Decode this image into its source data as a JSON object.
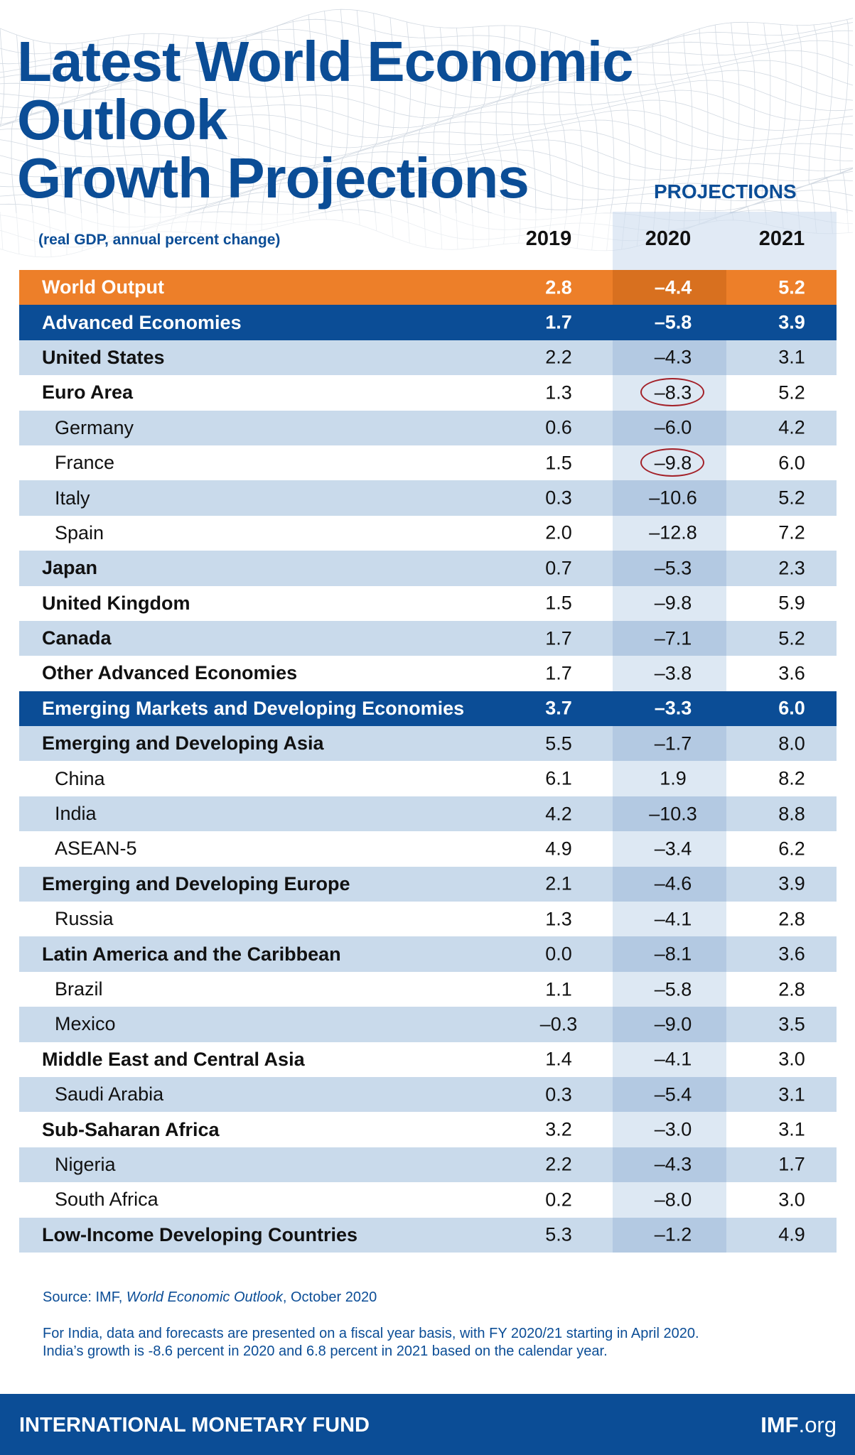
{
  "title_lines": [
    "Latest World Economic Outlook",
    "Growth Projections"
  ],
  "projections_label": "PROJECTIONS",
  "subtitle": "(real GDP, annual percent change)",
  "years": [
    "2019",
    "2020",
    "2021"
  ],
  "rows": [
    {
      "label": "World Output",
      "v2019": "2.8",
      "v2020": "–4.4",
      "v2021": "5.2",
      "style": "world"
    },
    {
      "label": "Advanced Economies",
      "v2019": "1.7",
      "v2020": "–5.8",
      "v2021": "3.9",
      "style": "blue"
    },
    {
      "label": "United States",
      "v2019": "2.2",
      "v2020": "–4.3",
      "v2021": "3.1",
      "style": "light",
      "level": "bold"
    },
    {
      "label": "Euro Area",
      "v2019": "1.3",
      "v2020": "–8.3",
      "v2021": "5.2",
      "style": "white",
      "level": "bold",
      "circled": true
    },
    {
      "label": "Germany",
      "v2019": "0.6",
      "v2020": "–6.0",
      "v2021": "4.2",
      "style": "light",
      "level": "sub"
    },
    {
      "label": "France",
      "v2019": "1.5",
      "v2020": "–9.8",
      "v2021": "6.0",
      "style": "white",
      "level": "sub",
      "circled": true
    },
    {
      "label": "Italy",
      "v2019": "0.3",
      "v2020": "–10.6",
      "v2021": "5.2",
      "style": "light",
      "level": "sub"
    },
    {
      "label": "Spain",
      "v2019": "2.0",
      "v2020": "–12.8",
      "v2021": "7.2",
      "style": "white",
      "level": "sub"
    },
    {
      "label": "Japan",
      "v2019": "0.7",
      "v2020": "–5.3",
      "v2021": "2.3",
      "style": "light",
      "level": "bold"
    },
    {
      "label": "United Kingdom",
      "v2019": "1.5",
      "v2020": "–9.8",
      "v2021": "5.9",
      "style": "white",
      "level": "bold"
    },
    {
      "label": "Canada",
      "v2019": "1.7",
      "v2020": "–7.1",
      "v2021": "5.2",
      "style": "light",
      "level": "bold"
    },
    {
      "label": "Other Advanced Economies",
      "v2019": "1.7",
      "v2020": "–3.8",
      "v2021": "3.6",
      "style": "white",
      "level": "bold"
    },
    {
      "label": "Emerging Markets and Developing Economies",
      "v2019": "3.7",
      "v2020": "–3.3",
      "v2021": "6.0",
      "style": "blue"
    },
    {
      "label": "Emerging and Developing Asia",
      "v2019": "5.5",
      "v2020": "–1.7",
      "v2021": "8.0",
      "style": "light",
      "level": "bold"
    },
    {
      "label": "China",
      "v2019": "6.1",
      "v2020": "1.9",
      "v2021": "8.2",
      "style": "white",
      "level": "sub"
    },
    {
      "label": "India",
      "v2019": "4.2",
      "v2020": "–10.3",
      "v2021": "8.8",
      "style": "light",
      "level": "sub"
    },
    {
      "label": "ASEAN-5",
      "v2019": "4.9",
      "v2020": "–3.4",
      "v2021": "6.2",
      "style": "white",
      "level": "sub"
    },
    {
      "label": "Emerging and Developing Europe",
      "v2019": "2.1",
      "v2020": "–4.6",
      "v2021": "3.9",
      "style": "light",
      "level": "bold"
    },
    {
      "label": "Russia",
      "v2019": "1.3",
      "v2020": "–4.1",
      "v2021": "2.8",
      "style": "white",
      "level": "sub"
    },
    {
      "label": "Latin America and the Caribbean",
      "v2019": "0.0",
      "v2020": "–8.1",
      "v2021": "3.6",
      "style": "light",
      "level": "bold"
    },
    {
      "label": "Brazil",
      "v2019": "1.1",
      "v2020": "–5.8",
      "v2021": "2.8",
      "style": "white",
      "level": "sub"
    },
    {
      "label": "Mexico",
      "v2019": "–0.3",
      "v2020": "–9.0",
      "v2021": "3.5",
      "style": "light",
      "level": "sub"
    },
    {
      "label": "Middle East and Central Asia",
      "v2019": "1.4",
      "v2020": "–4.1",
      "v2021": "3.0",
      "style": "white",
      "level": "bold"
    },
    {
      "label": "Saudi Arabia",
      "v2019": "0.3",
      "v2020": "–5.4",
      "v2021": "3.1",
      "style": "light",
      "level": "sub"
    },
    {
      "label": "Sub-Saharan Africa",
      "v2019": "3.2",
      "v2020": "–3.0",
      "v2021": "3.1",
      "style": "white",
      "level": "bold"
    },
    {
      "label": "Nigeria",
      "v2019": "2.2",
      "v2020": "–4.3",
      "v2021": "1.7",
      "style": "light",
      "level": "sub"
    },
    {
      "label": "South Africa",
      "v2019": "0.2",
      "v2020": "–8.0",
      "v2021": "3.0",
      "style": "white",
      "level": "sub"
    },
    {
      "label": "Low-Income Developing Countries",
      "v2019": "5.3",
      "v2020": "–1.2",
      "v2021": "4.9",
      "style": "light",
      "level": "bold"
    }
  ],
  "source": {
    "prefix": "Source: IMF, ",
    "publication": "World Economic Outlook",
    "suffix": ", October 2020"
  },
  "footnote_lines": [
    "For India, data and forecasts are presented on a fiscal year basis, with FY 2020/21 starting in April 2020.",
    "India’s growth is -8.6 percent in 2020 and 6.8 percent in 2021 based on the calendar year."
  ],
  "footer": {
    "org": "INTERNATIONAL MONETARY FUND",
    "site_bold": "IMF",
    "site_rest": ".org"
  },
  "colors": {
    "brand_blue": "#0b4d96",
    "world_orange": "#ed7f29",
    "row_light": "#c9daeb",
    "circle_red": "#a32028"
  },
  "chart_data": {
    "type": "table",
    "title": "Latest World Economic Outlook Growth Projections",
    "subtitle": "(real GDP, annual percent change)",
    "columns": [
      "2019",
      "2020",
      "2021"
    ],
    "projection_columns": [
      "2020",
      "2021"
    ],
    "rows": [
      [
        "World Output",
        2.8,
        -4.4,
        5.2
      ],
      [
        "Advanced Economies",
        1.7,
        -5.8,
        3.9
      ],
      [
        "United States",
        2.2,
        -4.3,
        3.1
      ],
      [
        "Euro Area",
        1.3,
        -8.3,
        5.2
      ],
      [
        "Germany",
        0.6,
        -6.0,
        4.2
      ],
      [
        "France",
        1.5,
        -9.8,
        6.0
      ],
      [
        "Italy",
        0.3,
        -10.6,
        5.2
      ],
      [
        "Spain",
        2.0,
        -12.8,
        7.2
      ],
      [
        "Japan",
        0.7,
        -5.3,
        2.3
      ],
      [
        "United Kingdom",
        1.5,
        -9.8,
        5.9
      ],
      [
        "Canada",
        1.7,
        -7.1,
        5.2
      ],
      [
        "Other Advanced Economies",
        1.7,
        -3.8,
        3.6
      ],
      [
        "Emerging Markets and Developing Economies",
        3.7,
        -3.3,
        6.0
      ],
      [
        "Emerging and Developing Asia",
        5.5,
        -1.7,
        8.0
      ],
      [
        "China",
        6.1,
        1.9,
        8.2
      ],
      [
        "India",
        4.2,
        -10.3,
        8.8
      ],
      [
        "ASEAN-5",
        4.9,
        -3.4,
        6.2
      ],
      [
        "Emerging and Developing Europe",
        2.1,
        -4.6,
        3.9
      ],
      [
        "Russia",
        1.3,
        -4.1,
        2.8
      ],
      [
        "Latin America and the Caribbean",
        0.0,
        -8.1,
        3.6
      ],
      [
        "Brazil",
        1.1,
        -5.8,
        2.8
      ],
      [
        "Mexico",
        -0.3,
        -9.0,
        3.5
      ],
      [
        "Middle East and Central Asia",
        1.4,
        -4.1,
        3.0
      ],
      [
        "Saudi Arabia",
        0.3,
        -5.4,
        3.1
      ],
      [
        "Sub-Saharan Africa",
        3.2,
        -3.0,
        3.1
      ],
      [
        "Nigeria",
        2.2,
        -4.3,
        1.7
      ],
      [
        "South Africa",
        0.2,
        -8.0,
        3.0
      ],
      [
        "Low-Income Developing Countries",
        5.3,
        -1.2,
        4.9
      ]
    ],
    "highlighted_cells": [
      [
        "Euro Area",
        "2020"
      ],
      [
        "France",
        "2020"
      ]
    ]
  }
}
